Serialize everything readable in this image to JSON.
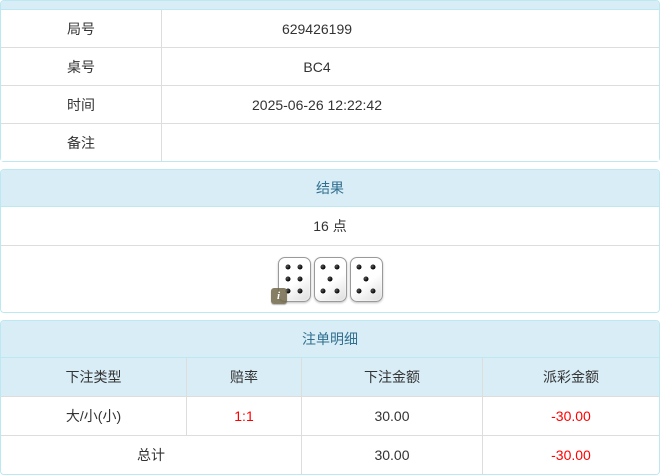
{
  "colors": {
    "panel_border": "#bce8f1",
    "heading_bg": "#d9edf7",
    "heading_text": "#31708f",
    "inner_border": "#dddddd",
    "body_text": "#333333",
    "negative_text": "#ff0000"
  },
  "game_info": {
    "rows": [
      {
        "label": "局号",
        "value": "629426199"
      },
      {
        "label": "桌号",
        "value": "BC4"
      },
      {
        "label": "时间",
        "value": "2025-06-26 12:22:42"
      },
      {
        "label": "备注",
        "value": ""
      }
    ]
  },
  "result_panel": {
    "title": "结果",
    "points": "16 点",
    "dice": [
      6,
      5,
      5
    ],
    "info_icon_glyph": "i"
  },
  "bets_panel": {
    "title": "注单明细",
    "columns": [
      "下注类型",
      "赔率",
      "下注金额",
      "派彩金额"
    ],
    "rows": [
      {
        "type": "大/小(小)",
        "odds": "1:1",
        "bet_amount": "30.00",
        "payout_amount": "-30.00"
      }
    ],
    "total": {
      "label": "总计",
      "bet_amount": "30.00",
      "payout_amount": "-30.00"
    }
  }
}
